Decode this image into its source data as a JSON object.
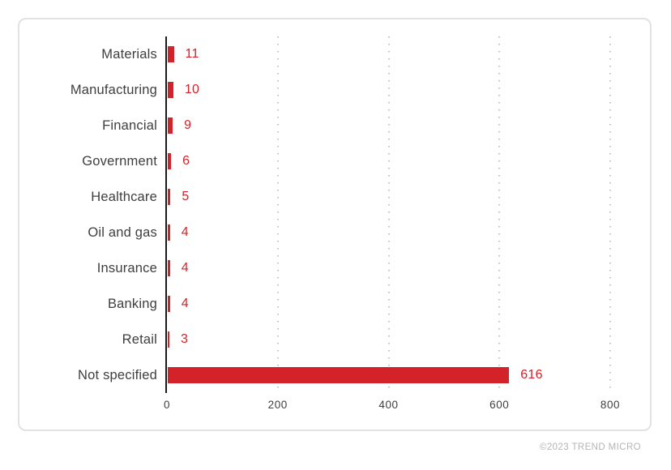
{
  "watermark": "©2023 TREND MICRO",
  "chart_data": {
    "type": "bar",
    "orientation": "horizontal",
    "title": "",
    "xlabel": "",
    "ylabel": "",
    "categories": [
      "Materials",
      "Manufacturing",
      "Financial",
      "Government",
      "Healthcare",
      "Oil and gas",
      "Insurance",
      "Banking",
      "Retail",
      "Not specified"
    ],
    "values": [
      11,
      10,
      9,
      6,
      5,
      4,
      4,
      4,
      3,
      616
    ],
    "value_labels": [
      "11",
      "10",
      "9",
      "6",
      "5",
      "4",
      "4",
      "4",
      "3",
      "616"
    ],
    "xlim": [
      0,
      800
    ],
    "x_ticks": [
      0,
      200,
      400,
      600,
      800
    ],
    "grid": "vertical-dotted",
    "legend": "none",
    "colors": {
      "bar": "#d2232a",
      "value_label": "#d2232a",
      "category_label": "#3e3e3e",
      "axis_line": "#1a1a1a",
      "gridline": "#c3c3c3",
      "card_border": "#e2e2e2",
      "watermark": "#b5b5b5"
    }
  }
}
